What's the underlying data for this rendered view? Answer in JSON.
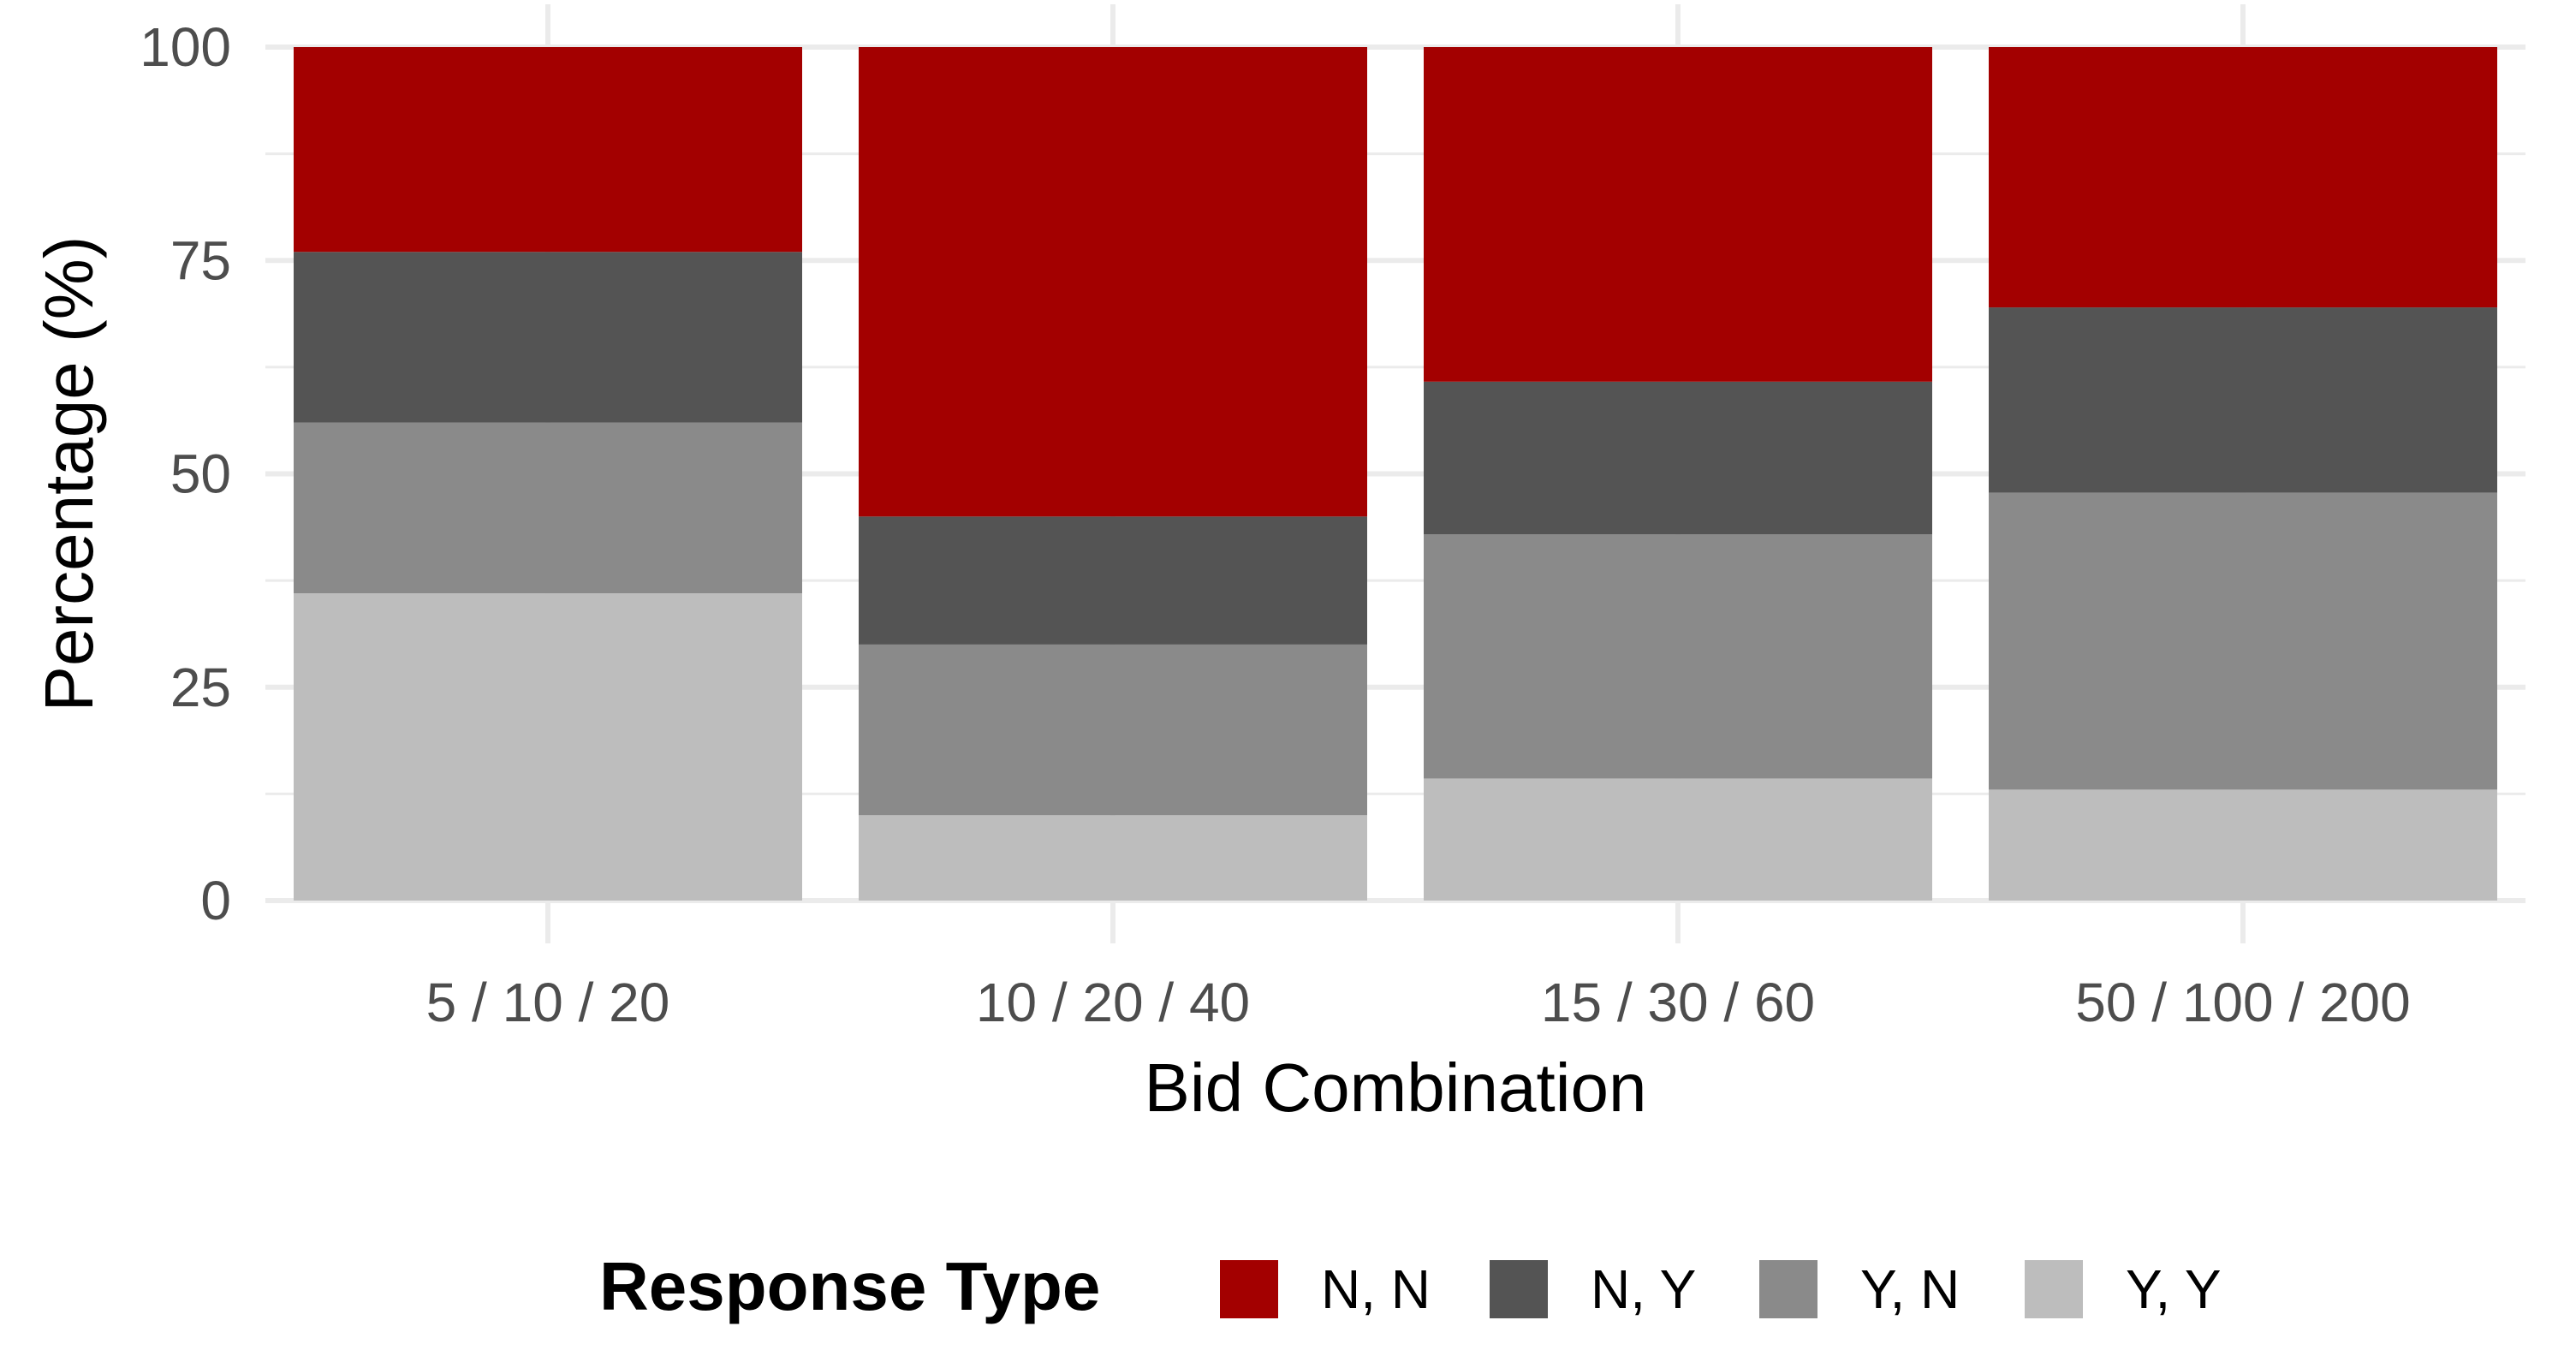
{
  "chart_data": {
    "type": "bar",
    "stacked": true,
    "categories": [
      "5 / 10 / 20",
      "10 / 20 / 40",
      "15 / 30 / 60",
      "50 / 100 / 200"
    ],
    "series": [
      {
        "name": "Y, Y",
        "color": "#bdbdbd",
        "values": [
          36,
          10,
          14.3,
          13
        ]
      },
      {
        "name": "Y, N",
        "color": "#8a8a8a",
        "values": [
          20,
          20,
          28.6,
          34.8
        ]
      },
      {
        "name": "N, Y",
        "color": "#545454",
        "values": [
          20,
          15,
          17.9,
          21.7
        ]
      },
      {
        "name": "N, N",
        "color": "#a30000",
        "values": [
          24,
          55,
          39.2,
          30.5
        ]
      }
    ],
    "xlabel": "Bid Combination",
    "ylabel": "Percentage (%)",
    "ylim": [
      0,
      100
    ],
    "yticks": [
      0,
      25,
      50,
      75,
      100
    ],
    "grid": true,
    "legend": {
      "title": "Response Type",
      "position": "bottom",
      "order": [
        "N, N",
        "N, Y",
        "Y, N",
        "Y, Y"
      ]
    }
  }
}
